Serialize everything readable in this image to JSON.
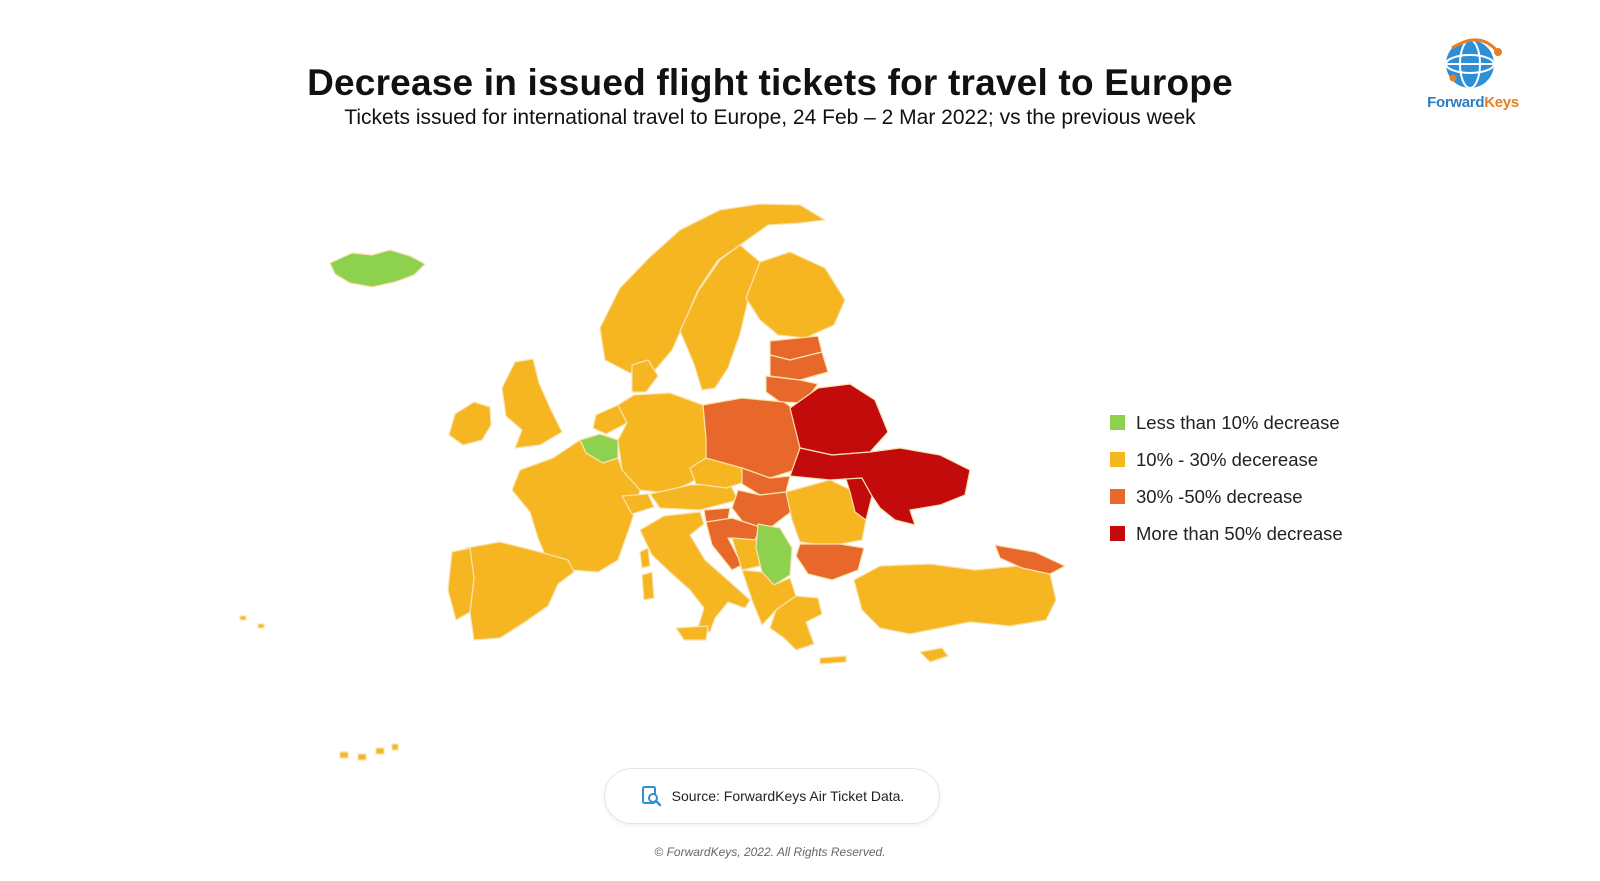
{
  "title": "Decrease in issued flight tickets for travel to Europe",
  "subtitle": "Tickets issued for international travel to Europe, 24 Feb – 2 Mar 2022; vs the previous week",
  "logo": {
    "brand_a": "Forward",
    "brand_b": "Keys",
    "icon": "globe-network-icon"
  },
  "colors": {
    "green": "#8ed14f",
    "amber": "#f5b622",
    "orange": "#e8672a",
    "red": "#c30b0b",
    "border": "#f8e3b0"
  },
  "legend": [
    {
      "label": "Less than 10% decrease",
      "color": "#8ed14f"
    },
    {
      "label": "10% - 30% decerease",
      "color": "#f5b622"
    },
    {
      "label": "30% -50% decrease",
      "color": "#e8672a"
    },
    {
      "label": "More than 50% decrease",
      "color": "#c30b0b"
    }
  ],
  "map_regions": [
    {
      "name": "Iceland",
      "category": "Less than 10% decrease"
    },
    {
      "name": "Belgium",
      "category": "Less than 10% decrease"
    },
    {
      "name": "Serbia",
      "category": "Less than 10% decrease"
    },
    {
      "name": "Poland",
      "category": "30% -50% decrease"
    },
    {
      "name": "Latvia",
      "category": "30% -50% decrease"
    },
    {
      "name": "Lithuania",
      "category": "30% -50% decrease"
    },
    {
      "name": "Slovakia",
      "category": "30% -50% decrease"
    },
    {
      "name": "Hungary",
      "category": "30% -50% decrease"
    },
    {
      "name": "Croatia",
      "category": "30% -50% decrease"
    },
    {
      "name": "Bulgaria",
      "category": "30% -50% decrease"
    },
    {
      "name": "Georgia",
      "category": "30% -50% decrease"
    },
    {
      "name": "Belarus",
      "category": "More than 50% decrease"
    },
    {
      "name": "Ukraine",
      "category": "More than 50% decrease"
    },
    {
      "name": "Moldova",
      "category": "More than 50% decrease"
    }
  ],
  "source": {
    "icon": "document-search-icon",
    "text": "Source: ForwardKeys Air Ticket Data."
  },
  "copyright": "© ForwardKeys, 2022. All Rights Reserved."
}
